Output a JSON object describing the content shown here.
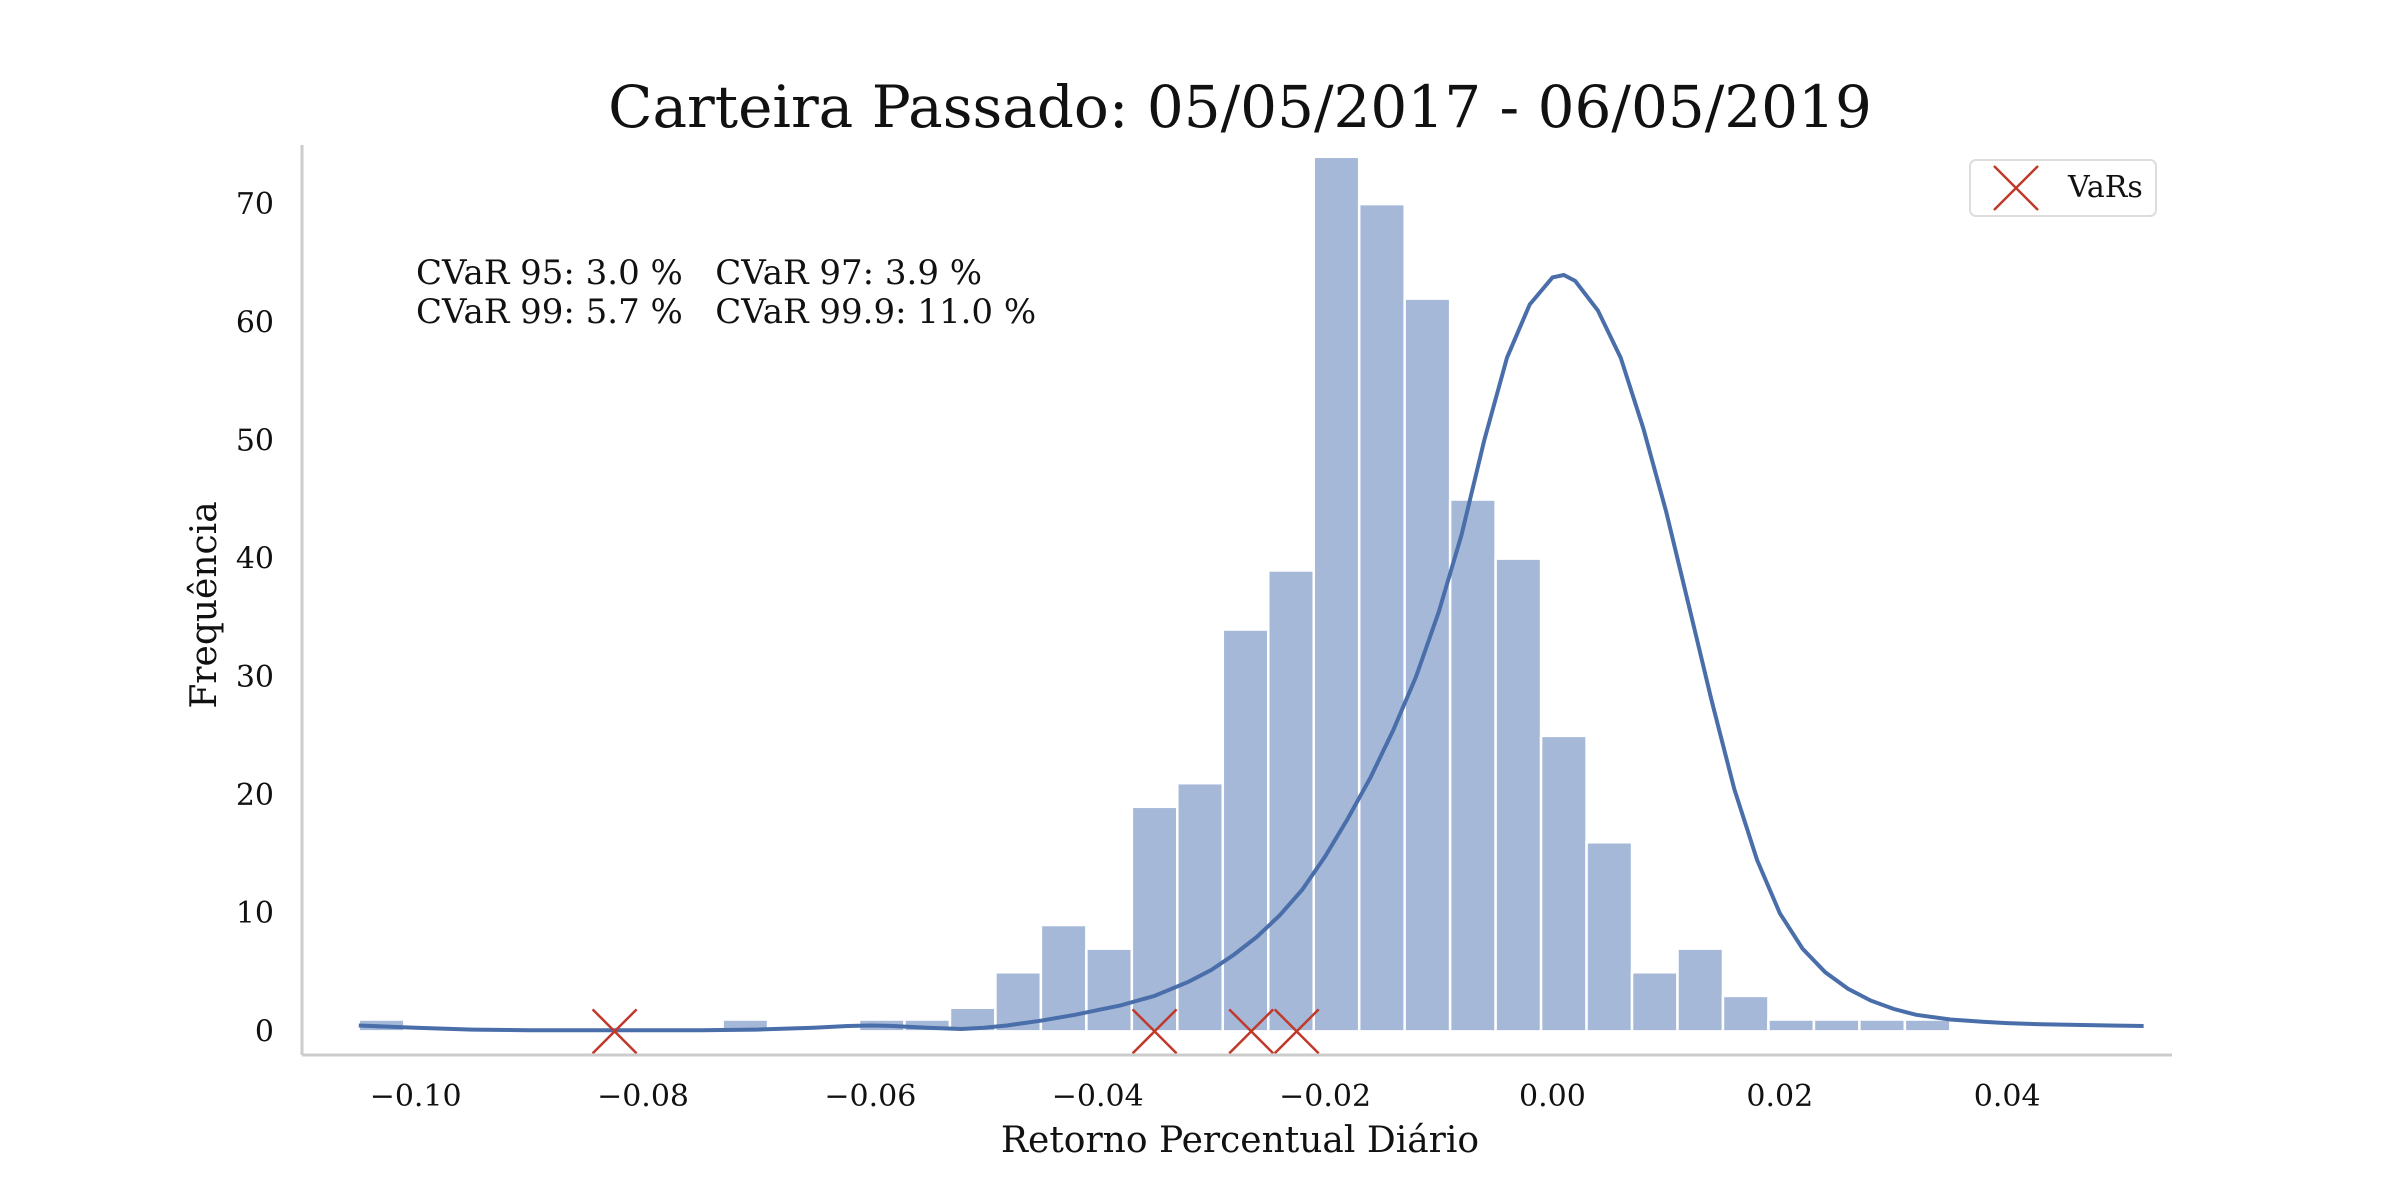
{
  "chart_data": {
    "type": "bar",
    "title": "Carteira Passado: 05/05/2017 - 06/05/2019",
    "xlabel": "Retorno Percentual Diário",
    "ylabel": "Frequência",
    "xlim": [
      -0.11,
      0.0545
    ],
    "ylim": [
      -2,
      75
    ],
    "grid": false,
    "legend": {
      "placement": "top-right",
      "entries": [
        "VaRs"
      ]
    },
    "x_ticks": [
      {
        "value": -0.1,
        "label": "−0.10"
      },
      {
        "value": -0.08,
        "label": "−0.08"
      },
      {
        "value": -0.06,
        "label": "−0.06"
      },
      {
        "value": -0.04,
        "label": "−0.04"
      },
      {
        "value": -0.02,
        "label": "−0.02"
      },
      {
        "value": 0.0,
        "label": "0.00"
      },
      {
        "value": 0.02,
        "label": "0.02"
      },
      {
        "value": 0.04,
        "label": "0.04"
      }
    ],
    "y_ticks": [
      {
        "value": 0,
        "label": "0"
      },
      {
        "value": 10,
        "label": "10"
      },
      {
        "value": 20,
        "label": "20"
      },
      {
        "value": 30,
        "label": "30"
      },
      {
        "value": 40,
        "label": "40"
      },
      {
        "value": 50,
        "label": "50"
      },
      {
        "value": 60,
        "label": "60"
      },
      {
        "value": 70,
        "label": "70"
      }
    ],
    "bin_start": -0.105,
    "bin_width": 0.004,
    "counts": [
      1,
      0,
      0,
      0,
      0,
      0,
      0,
      0,
      1,
      0,
      0,
      1,
      1,
      2,
      5,
      9,
      7,
      19,
      21,
      34,
      39,
      74,
      70,
      62,
      45,
      40,
      25,
      16,
      5,
      7,
      3,
      1,
      1,
      1,
      1
    ],
    "kde": {
      "x": [
        -0.105,
        -0.1,
        -0.095,
        -0.09,
        -0.085,
        -0.08,
        -0.075,
        -0.07,
        -0.065,
        -0.062,
        -0.06,
        -0.058,
        -0.055,
        -0.052,
        -0.05,
        -0.048,
        -0.045,
        -0.042,
        -0.04,
        -0.038,
        -0.035,
        -0.032,
        -0.03,
        -0.028,
        -0.026,
        -0.024,
        -0.022,
        -0.02,
        -0.018,
        -0.016,
        -0.014,
        -0.012,
        -0.01,
        -0.008,
        -0.006,
        -0.004,
        -0.002,
        0.0,
        0.001,
        0.002,
        0.004,
        0.006,
        0.008,
        0.01,
        0.012,
        0.014,
        0.016,
        0.018,
        0.02,
        0.022,
        0.024,
        0.026,
        0.028,
        0.03,
        0.032,
        0.035,
        0.038,
        0.04,
        0.043,
        0.046,
        0.049,
        0.052
      ],
      "y": [
        0.5,
        0.3,
        0.15,
        0.1,
        0.1,
        0.1,
        0.1,
        0.15,
        0.3,
        0.45,
        0.5,
        0.45,
        0.3,
        0.2,
        0.3,
        0.5,
        0.9,
        1.4,
        1.8,
        2.2,
        3.0,
        4.2,
        5.2,
        6.5,
        8.0,
        9.8,
        12.0,
        14.8,
        18.0,
        21.5,
        25.5,
        30.0,
        35.5,
        42.0,
        50.0,
        57.0,
        61.5,
        63.8,
        64.0,
        63.5,
        61.0,
        57.0,
        51.0,
        44.0,
        36.0,
        28.0,
        20.5,
        14.5,
        10.0,
        7.0,
        5.0,
        3.6,
        2.6,
        1.9,
        1.4,
        1.0,
        0.8,
        0.7,
        0.6,
        0.55,
        0.5,
        0.45
      ]
    },
    "vars": [
      {
        "name": "VaRs",
        "x": [
          -0.0825,
          -0.035,
          -0.0265,
          -0.0225
        ],
        "y": [
          0,
          0,
          0,
          0
        ]
      }
    ],
    "annotations": [
      "CVaR 95: 3.0 %   CVaR 97: 3.9 %",
      "CVaR 99: 5.7 %   CVaR 99.9: 11.0 %"
    ],
    "colors": {
      "bar_fill": "#a5b8d8",
      "bar_edge": "#ffffff",
      "kde_line": "#4a6eaa",
      "var_marker": "#c0392b",
      "spine": "#cccccc",
      "legend_border": "#dddddd"
    }
  }
}
